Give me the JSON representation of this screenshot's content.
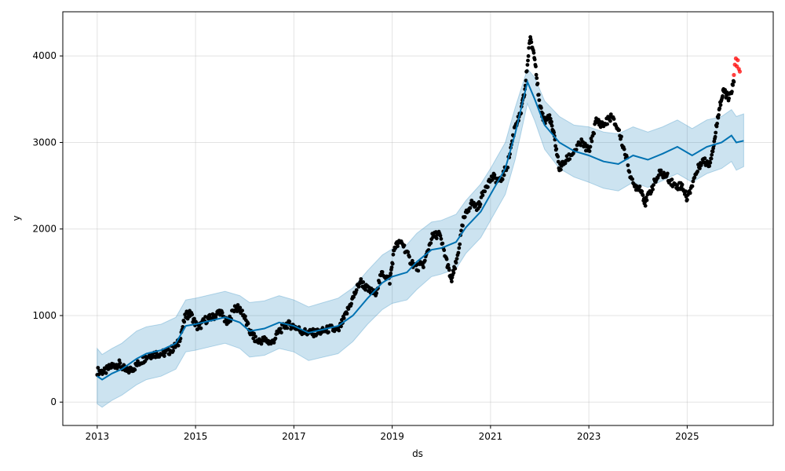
{
  "chart_data": {
    "type": "line",
    "xlabel": "ds",
    "ylabel": "y",
    "xlim": [
      2012.3,
      2026.75
    ],
    "ylim": [
      -270,
      4510
    ],
    "x_ticks": [
      "2013",
      "2015",
      "2017",
      "2019",
      "2021",
      "2023",
      "2025"
    ],
    "y_ticks": [
      "0",
      "1000",
      "2000",
      "3000",
      "4000"
    ],
    "grid": true,
    "legend": "none",
    "colors": {
      "trend": "#0072b2",
      "band": "#0072b2",
      "observed": "#000000",
      "recent": "#ff0000"
    },
    "series": [
      {
        "role": "forecast",
        "x": [
          2013.0,
          2013.1,
          2013.3,
          2013.5,
          2013.8,
          2014.0,
          2014.3,
          2014.6,
          2014.8,
          2015.0,
          2015.3,
          2015.6,
          2015.9,
          2016.1,
          2016.4,
          2016.7,
          2017.0,
          2017.3,
          2017.6,
          2017.9,
          2018.2,
          2018.5,
          2018.8,
          2019.0,
          2019.3,
          2019.5,
          2019.8,
          2020.0,
          2020.3,
          2020.5,
          2020.8,
          2021.0,
          2021.3,
          2021.5,
          2021.75,
          2021.9,
          2022.1,
          2022.4,
          2022.7,
          2023.0,
          2023.3,
          2023.6,
          2023.9,
          2024.2,
          2024.5,
          2024.8,
          2025.1,
          2025.4,
          2025.7,
          2025.9,
          2026.0,
          2026.15
        ],
        "y": [
          300,
          260,
          330,
          380,
          500,
          560,
          600,
          680,
          880,
          900,
          940,
          980,
          920,
          820,
          850,
          920,
          880,
          800,
          840,
          880,
          1000,
          1200,
          1380,
          1450,
          1500,
          1620,
          1760,
          1780,
          1850,
          2020,
          2200,
          2400,
          2700,
          3100,
          3700,
          3500,
          3200,
          3000,
          2900,
          2850,
          2780,
          2750,
          2850,
          2800,
          2870,
          2950,
          2850,
          2950,
          3000,
          3080,
          3000,
          3020
        ]
      },
      {
        "role": "uncertainty-upper",
        "x": [
          2013.0,
          2013.1,
          2013.3,
          2013.5,
          2013.8,
          2014.0,
          2014.3,
          2014.6,
          2014.8,
          2015.0,
          2015.3,
          2015.6,
          2015.9,
          2016.1,
          2016.4,
          2016.7,
          2017.0,
          2017.3,
          2017.6,
          2017.9,
          2018.2,
          2018.5,
          2018.8,
          2019.0,
          2019.3,
          2019.5,
          2019.8,
          2020.0,
          2020.3,
          2020.5,
          2020.8,
          2021.0,
          2021.3,
          2021.5,
          2021.75,
          2021.9,
          2022.1,
          2022.4,
          2022.7,
          2023.0,
          2023.3,
          2023.6,
          2023.9,
          2024.2,
          2024.5,
          2024.8,
          2025.1,
          2025.4,
          2025.7,
          2025.9,
          2026.0,
          2026.15
        ],
        "y": [
          620,
          550,
          620,
          680,
          820,
          870,
          900,
          980,
          1180,
          1200,
          1240,
          1280,
          1230,
          1150,
          1170,
          1230,
          1180,
          1100,
          1150,
          1200,
          1320,
          1520,
          1700,
          1770,
          1820,
          1950,
          2080,
          2100,
          2170,
          2330,
          2520,
          2700,
          3000,
          3400,
          3850,
          3750,
          3480,
          3300,
          3200,
          3180,
          3120,
          3100,
          3180,
          3120,
          3180,
          3260,
          3160,
          3260,
          3300,
          3380,
          3300,
          3330
        ]
      },
      {
        "role": "uncertainty-lower",
        "x": [
          2013.0,
          2013.1,
          2013.3,
          2013.5,
          2013.8,
          2014.0,
          2014.3,
          2014.6,
          2014.8,
          2015.0,
          2015.3,
          2015.6,
          2015.9,
          2016.1,
          2016.4,
          2016.7,
          2017.0,
          2017.3,
          2017.6,
          2017.9,
          2018.2,
          2018.5,
          2018.8,
          2019.0,
          2019.3,
          2019.5,
          2019.8,
          2020.0,
          2020.3,
          2020.5,
          2020.8,
          2021.0,
          2021.3,
          2021.5,
          2021.75,
          2021.9,
          2022.1,
          2022.4,
          2022.7,
          2023.0,
          2023.3,
          2023.6,
          2023.9,
          2024.2,
          2024.5,
          2024.8,
          2025.1,
          2025.4,
          2025.7,
          2025.9,
          2026.0,
          2026.15
        ],
        "y": [
          -20,
          -60,
          20,
          80,
          200,
          260,
          300,
          380,
          580,
          600,
          640,
          680,
          620,
          520,
          540,
          620,
          580,
          480,
          520,
          560,
          700,
          900,
          1070,
          1140,
          1180,
          1300,
          1450,
          1480,
          1540,
          1720,
          1900,
          2100,
          2400,
          2800,
          3450,
          3250,
          2920,
          2700,
          2600,
          2540,
          2470,
          2440,
          2540,
          2480,
          2560,
          2640,
          2540,
          2640,
          2700,
          2780,
          2680,
          2720
        ]
      },
      {
        "role": "observed",
        "x": [
          2013.0,
          2013.15,
          2013.3,
          2013.45,
          2013.6,
          2013.75,
          2013.9,
          2014.05,
          2014.2,
          2014.35,
          2014.5,
          2014.65,
          2014.8,
          2014.9,
          2015.05,
          2015.2,
          2015.35,
          2015.5,
          2015.65,
          2015.8,
          2015.95,
          2016.1,
          2016.25,
          2016.4,
          2016.55,
          2016.7,
          2016.85,
          2017.0,
          2017.15,
          2017.3,
          2017.45,
          2017.6,
          2017.75,
          2017.9,
          2018.05,
          2018.2,
          2018.35,
          2018.5,
          2018.65,
          2018.8,
          2018.95,
          2019.05,
          2019.2,
          2019.35,
          2019.5,
          2019.65,
          2019.8,
          2019.95,
          2020.1,
          2020.2,
          2020.3,
          2020.45,
          2020.6,
          2020.75,
          2020.9,
          2021.05,
          2021.2,
          2021.35,
          2021.5,
          2021.6,
          2021.7,
          2021.8,
          2021.9,
          2022.0,
          2022.1,
          2022.2,
          2022.3,
          2022.4,
          2022.55,
          2022.7,
          2022.85,
          2023.0,
          2023.15,
          2023.3,
          2023.45,
          2023.6,
          2023.75,
          2023.9,
          2024.05,
          2024.15,
          2024.3,
          2024.45,
          2024.6,
          2024.75,
          2024.9,
          2025.0,
          2025.15,
          2025.3,
          2025.45,
          2025.55,
          2025.65,
          2025.75,
          2025.85,
          2025.95
        ],
        "y": [
          360,
          350,
          420,
          440,
          350,
          400,
          480,
          540,
          560,
          560,
          600,
          680,
          1000,
          1020,
          850,
          950,
          980,
          1050,
          900,
          1100,
          1050,
          820,
          700,
          720,
          680,
          820,
          900,
          880,
          820,
          800,
          800,
          820,
          850,
          820,
          1000,
          1200,
          1400,
          1300,
          1250,
          1500,
          1400,
          1800,
          1850,
          1650,
          1550,
          1600,
          1900,
          1950,
          1650,
          1400,
          1600,
          2100,
          2300,
          2250,
          2500,
          2600,
          2550,
          2750,
          3200,
          3300,
          3600,
          4200,
          4000,
          3400,
          3250,
          3300,
          3050,
          2700,
          2800,
          2900,
          3000,
          2900,
          3250,
          3200,
          3300,
          3150,
          2850,
          2500,
          2480,
          2300,
          2500,
          2650,
          2600,
          2500,
          2500,
          2350,
          2600,
          2800,
          2750,
          3000,
          3400,
          3600,
          3500,
          3700
        ]
      },
      {
        "role": "recent",
        "x": [
          2025.95,
          2025.97,
          2025.99,
          2026.01,
          2026.03,
          2026.05,
          2026.07
        ],
        "y": [
          3780,
          3900,
          3970,
          3880,
          3950,
          3850,
          3820
        ]
      }
    ]
  }
}
